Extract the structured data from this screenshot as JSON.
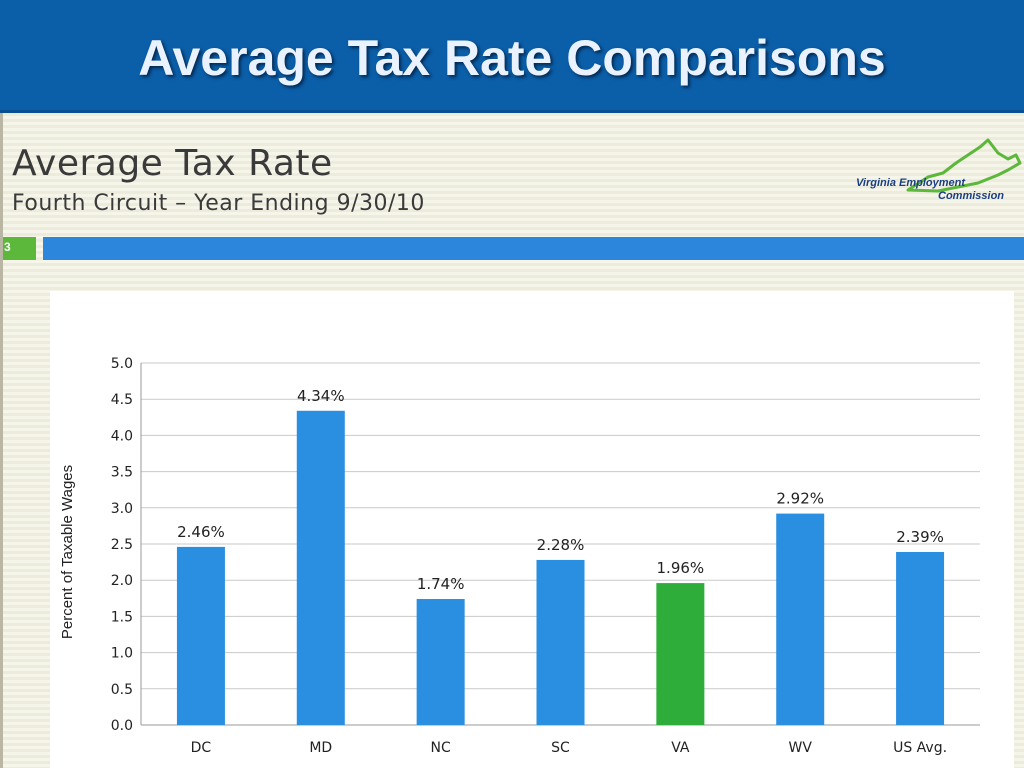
{
  "banner": {
    "title": "Average Tax Rate Comparisons"
  },
  "slide": {
    "title": "Average Tax Rate",
    "subtitle": "Fourth Circuit – Year Ending 9/30/10",
    "slide_number": "3",
    "logo": {
      "line1": "Virginia Employment",
      "line2": "Commission"
    }
  },
  "colors": {
    "bar": "#2a8fe0",
    "highlight_bar": "#2ead3a",
    "banner": "#0b5ea8"
  },
  "chart_data": {
    "type": "bar",
    "categories": [
      "DC",
      "MD",
      "NC",
      "SC",
      "VA",
      "WV",
      "US Avg."
    ],
    "values": [
      2.46,
      4.34,
      1.74,
      2.28,
      1.96,
      2.92,
      2.39
    ],
    "value_labels": [
      "2.46%",
      "4.34%",
      "1.74%",
      "2.28%",
      "1.96%",
      "2.92%",
      "2.39%"
    ],
    "highlight": "VA",
    "ylabel": "Percent of Taxable Wages",
    "ylim": [
      0,
      5
    ],
    "yticks": [
      "0.0",
      "0.5",
      "1.0",
      "1.5",
      "2.0",
      "2.5",
      "3.0",
      "3.5",
      "4.0",
      "4.5",
      "5.0"
    ],
    "grid": true
  }
}
